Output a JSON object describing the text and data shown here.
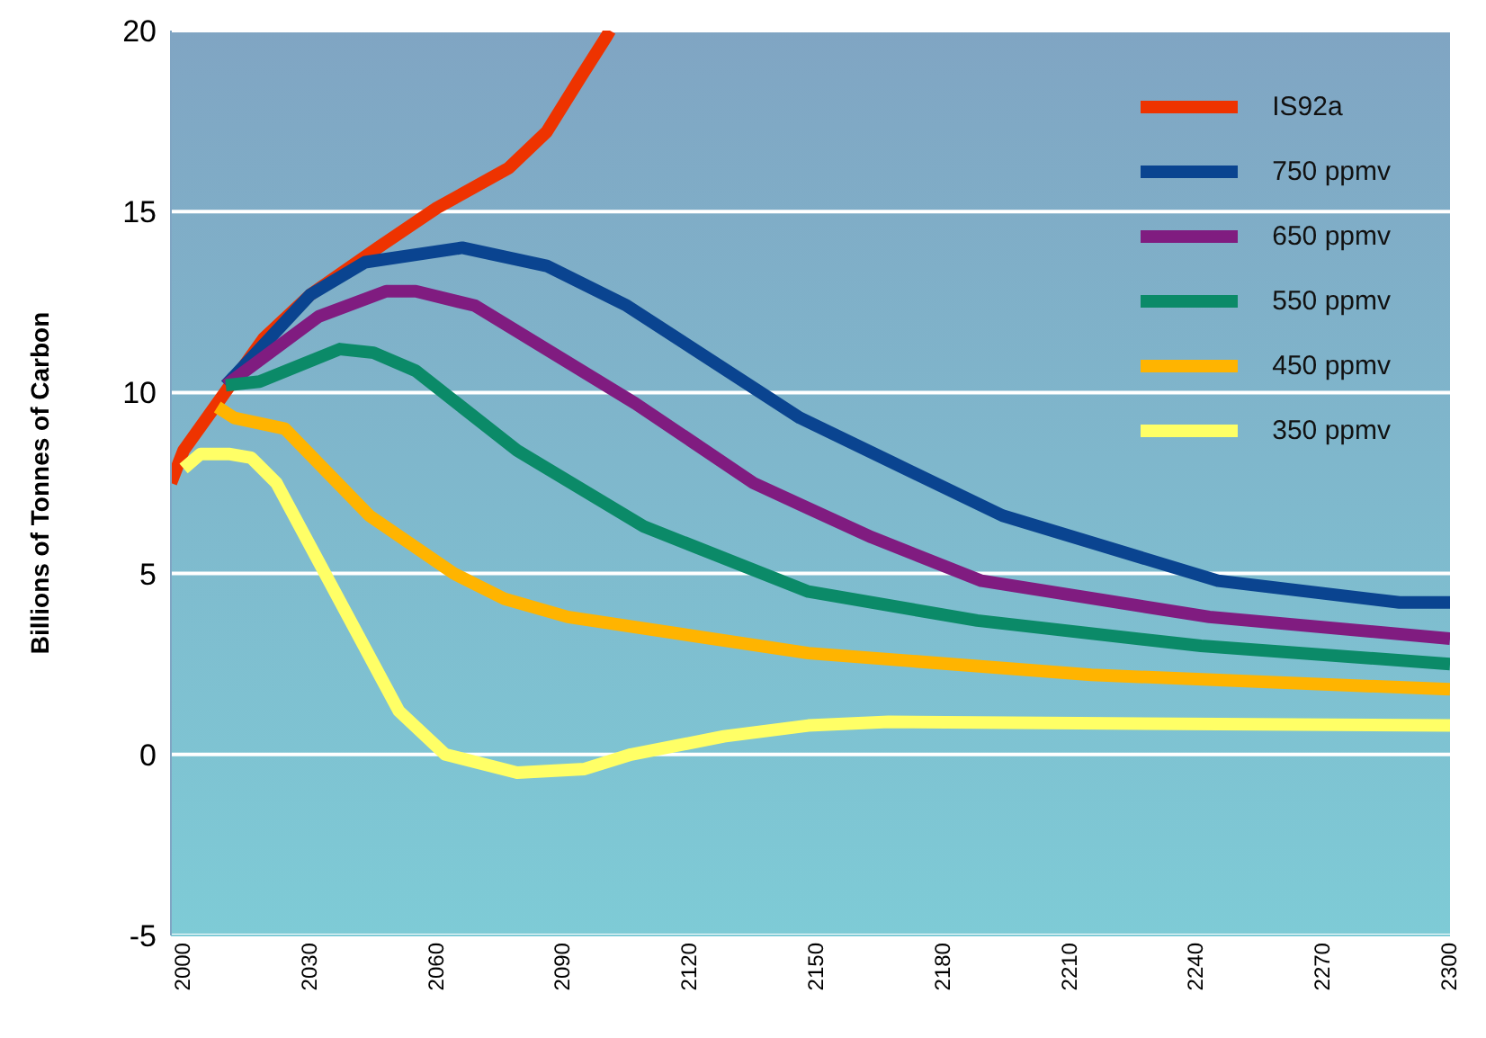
{
  "chart_data": {
    "type": "line",
    "ylabel": "Billions of Tonnes of Carbon",
    "xlim": [
      1997,
      2300
    ],
    "xticks": [
      2000,
      2030,
      2060,
      2090,
      2120,
      2150,
      2180,
      2210,
      2240,
      2270,
      2300
    ],
    "ylim": [
      -5,
      20
    ],
    "yticks": [
      -5,
      0,
      5,
      10,
      15,
      20
    ],
    "grid": "y",
    "legend": "top right",
    "line_style": "solid",
    "marker": "none",
    "series": [
      {
        "name": "IS92a",
        "color": "#ee3300",
        "x": [
          1997,
          2000,
          2019,
          2030,
          2046,
          2060,
          2077,
          2086,
          2094,
          2100,
          2101
        ],
        "values": [
          7.5,
          8.4,
          11.5,
          12.7,
          14.0,
          15.1,
          16.2,
          17.2,
          18.7,
          19.8,
          20
        ]
      },
      {
        "name": "750 ppmv",
        "color": "#0a4490",
        "x": [
          2010,
          2030,
          2043,
          2066,
          2086,
          2105,
          2146,
          2194,
          2245,
          2288,
          2300
        ],
        "values": [
          10.2,
          12.7,
          13.6,
          14.0,
          13.5,
          12.4,
          9.3,
          6.6,
          4.8,
          4.2,
          4.2
        ]
      },
      {
        "name": "650 ppmv",
        "color": "#801c80",
        "x": [
          2010,
          2032,
          2048,
          2055,
          2069,
          2107,
          2135,
          2148,
          2163,
          2189,
          2243,
          2300
        ],
        "values": [
          10.2,
          12.1,
          12.8,
          12.8,
          12.4,
          9.7,
          7.5,
          6.8,
          6.0,
          4.8,
          3.8,
          3.2
        ]
      },
      {
        "name": "550 ppmv",
        "color": "#0b8a68",
        "x": [
          2010,
          2018,
          2037,
          2045,
          2055,
          2079,
          2109,
          2148,
          2188,
          2241,
          2300
        ],
        "values": [
          10.2,
          10.3,
          11.2,
          11.1,
          10.6,
          8.4,
          6.3,
          4.5,
          3.7,
          3.0,
          2.5
        ]
      },
      {
        "name": "450 ppmv",
        "color": "#ffb400",
        "x": [
          2008,
          2012,
          2024,
          2044,
          2064,
          2076,
          2091,
          2148,
          2215,
          2300
        ],
        "values": [
          9.6,
          9.3,
          9.0,
          6.6,
          5.0,
          4.3,
          3.8,
          2.8,
          2.2,
          1.8
        ]
      },
      {
        "name": "350 ppmv",
        "color": "#ffff66",
        "x": [
          2000,
          2004,
          2011,
          2016,
          2022,
          2051,
          2062,
          2079,
          2095,
          2106,
          2128,
          2148,
          2167,
          2300
        ],
        "values": [
          7.9,
          8.3,
          8.3,
          8.2,
          7.5,
          1.2,
          0,
          -0.5,
          -0.4,
          0,
          0.5,
          0.8,
          0.9,
          0.8
        ]
      }
    ]
  }
}
